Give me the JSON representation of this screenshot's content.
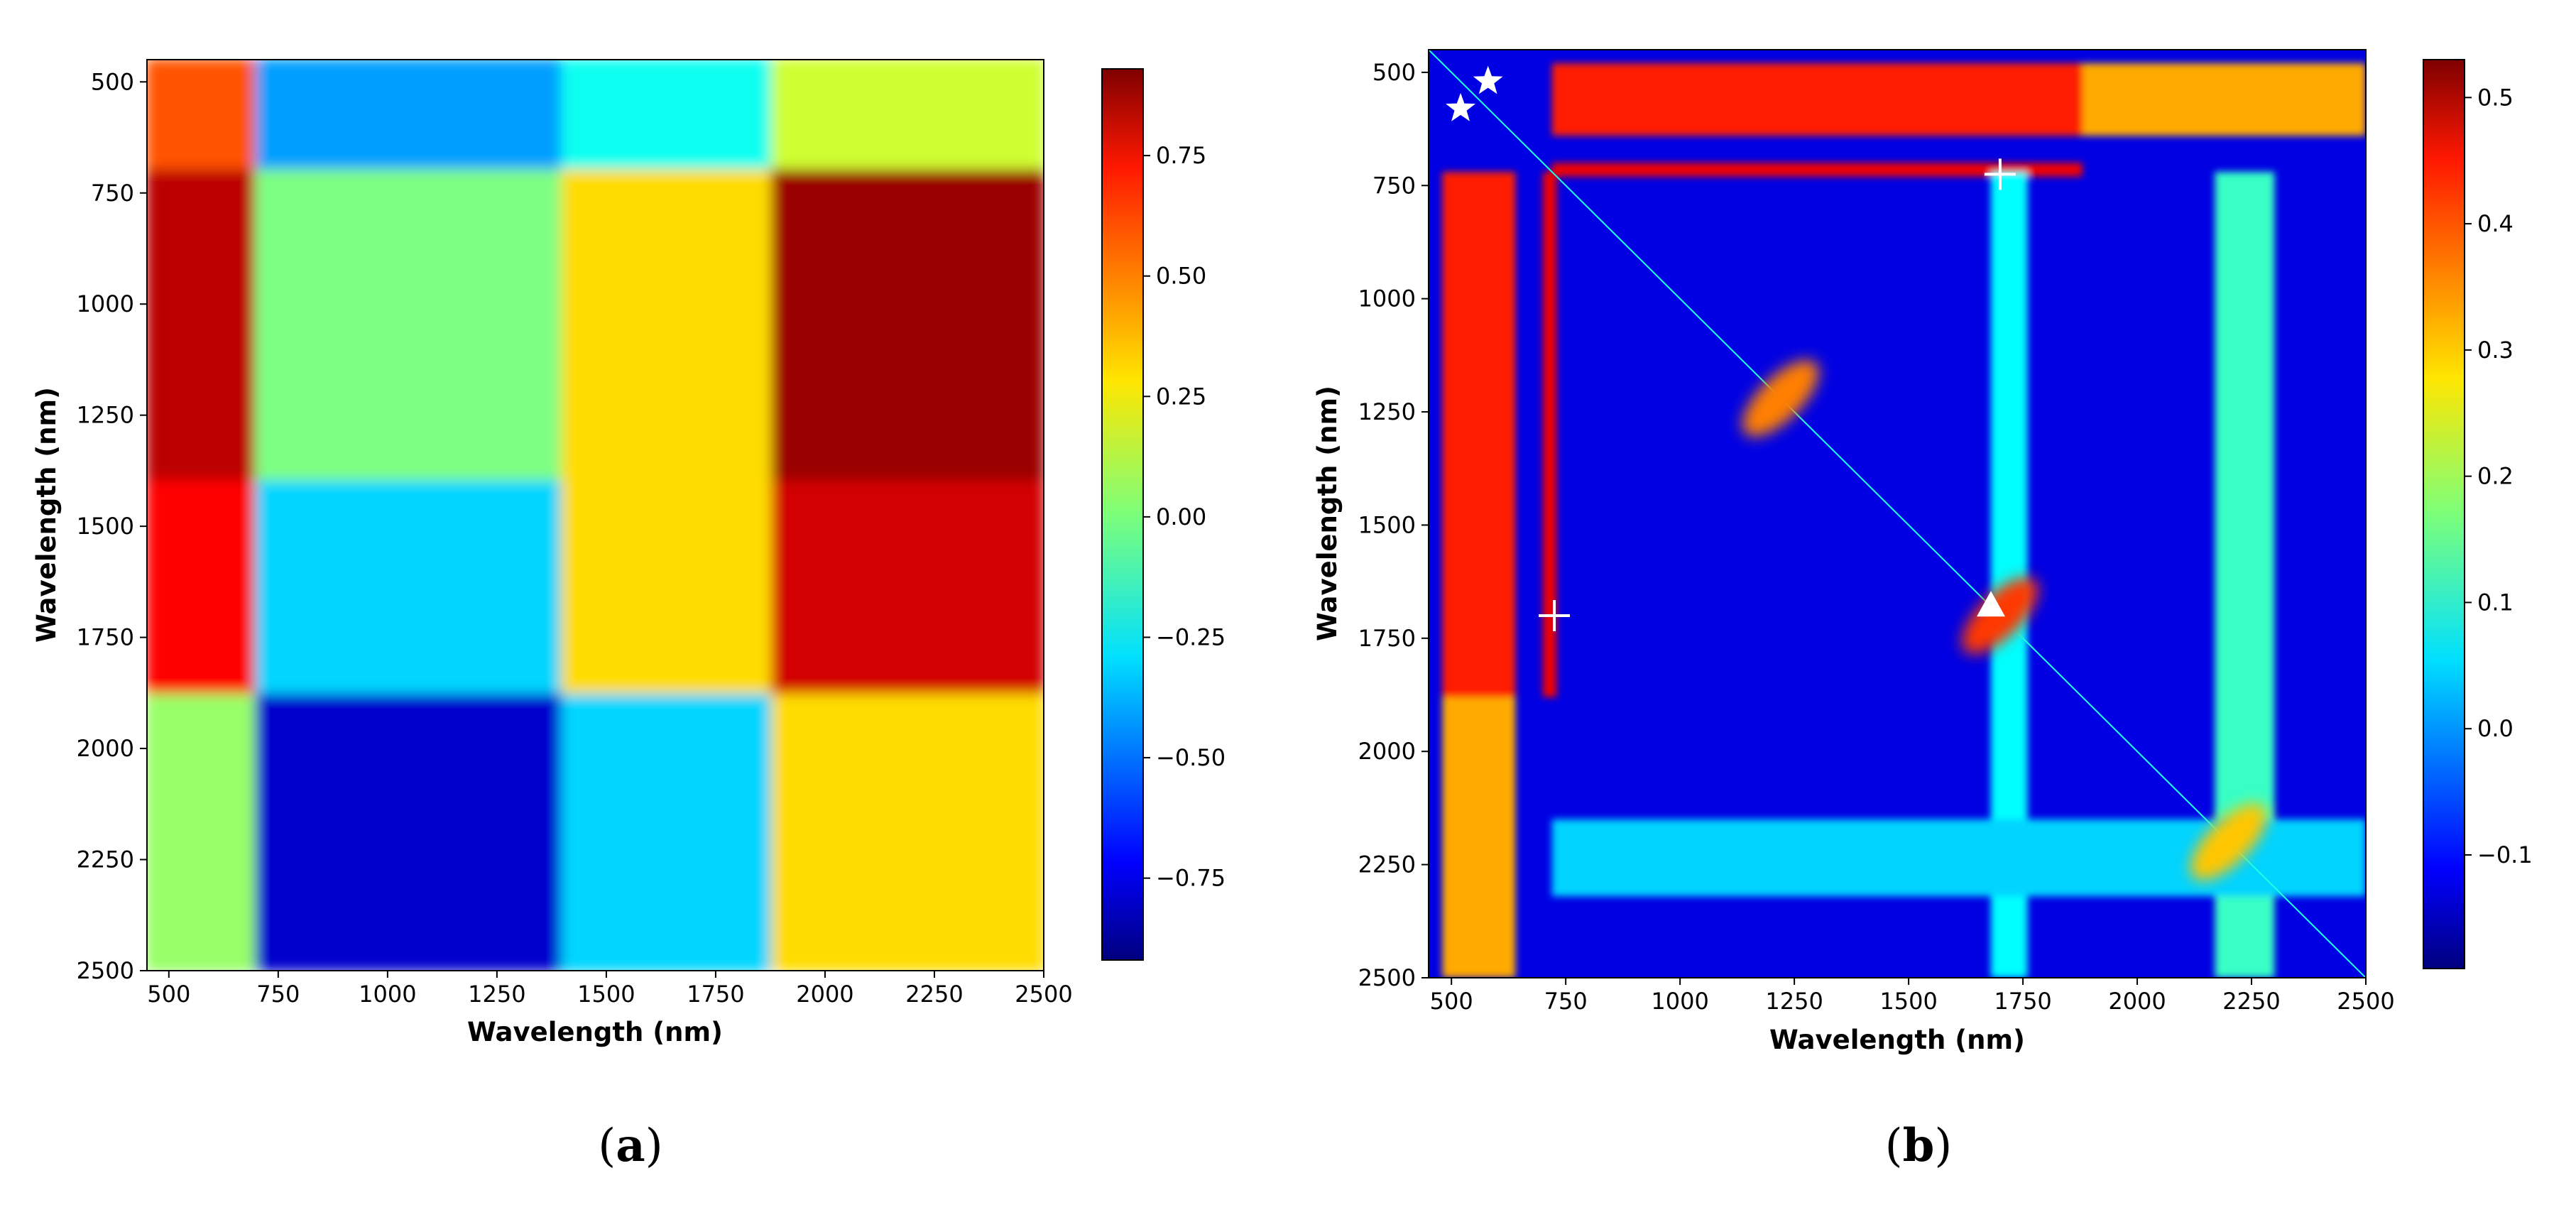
{
  "chart_data": [
    {
      "type": "heatmap",
      "panel_label": "a",
      "xlabel": "Wavelength (nm)",
      "ylabel": "Wavelength (nm)",
      "xlim": [
        450,
        2500
      ],
      "ylim": [
        2500,
        450
      ],
      "x_ticks": [
        500,
        750,
        1000,
        1250,
        1500,
        1750,
        2000,
        2250,
        2500
      ],
      "y_ticks": [
        500,
        750,
        1000,
        1250,
        1500,
        1750,
        2000,
        2250,
        2500
      ],
      "colormap": "jet",
      "colorbar": {
        "range": [
          -0.92,
          0.93
        ],
        "ticks": [
          -0.75,
          -0.5,
          -0.25,
          0.0,
          0.25,
          0.5,
          0.75
        ],
        "tick_labels": [
          "−0.75",
          "−0.50",
          "−0.25",
          "0.00",
          "0.25",
          "0.50",
          "0.75"
        ]
      },
      "region_breaks_nm": [
        450,
        700,
        1400,
        1880,
        2500
      ],
      "region_values": [
        [
          0.55,
          -0.4,
          -0.2,
          0.15
        ],
        [
          0.82,
          0.0,
          0.3,
          0.88
        ],
        [
          0.7,
          -0.3,
          0.3,
          0.78
        ],
        [
          0.05,
          -0.78,
          -0.3,
          0.3
        ]
      ],
      "grid": false
    },
    {
      "type": "heatmap",
      "panel_label": "b",
      "xlabel": "Wavelength (nm)",
      "ylabel": "Wavelength (nm)",
      "xlim": [
        450,
        2500
      ],
      "ylim": [
        2500,
        450
      ],
      "x_ticks": [
        500,
        750,
        1000,
        1250,
        1500,
        1750,
        2000,
        2250,
        2500
      ],
      "y_ticks": [
        500,
        750,
        1000,
        1250,
        1500,
        1750,
        2000,
        2250,
        2500
      ],
      "colormap": "jet",
      "colorbar": {
        "range": [
          -0.19,
          0.53
        ],
        "ticks": [
          -0.1,
          0.0,
          0.1,
          0.2,
          0.3,
          0.4,
          0.5
        ],
        "tick_labels": [
          "−0.1",
          "0.0",
          "0.1",
          "0.2",
          "0.3",
          "0.4",
          "0.5"
        ]
      },
      "background_value": -0.12,
      "band_features": [
        {
          "orientation": "horizontal",
          "from_nm": 480,
          "to_nm": 640,
          "start_nm": 720,
          "end_nm": 1880,
          "value": 0.42
        },
        {
          "orientation": "horizontal",
          "from_nm": 480,
          "to_nm": 640,
          "start_nm": 1880,
          "end_nm": 2500,
          "value": 0.32
        },
        {
          "orientation": "horizontal",
          "from_nm": 700,
          "to_nm": 730,
          "start_nm": 720,
          "end_nm": 1880,
          "value": 0.45
        },
        {
          "orientation": "vertical",
          "from_nm": 480,
          "to_nm": 640,
          "start_nm": 720,
          "end_nm": 1880,
          "value": 0.42
        },
        {
          "orientation": "vertical",
          "from_nm": 480,
          "to_nm": 640,
          "start_nm": 1880,
          "end_nm": 2500,
          "value": 0.32
        },
        {
          "orientation": "vertical",
          "from_nm": 700,
          "to_nm": 730,
          "start_nm": 720,
          "end_nm": 1880,
          "value": 0.45
        },
        {
          "orientation": "vertical",
          "from_nm": 1680,
          "to_nm": 1760,
          "start_nm": 720,
          "end_nm": 2500,
          "value": 0.08
        },
        {
          "orientation": "vertical",
          "from_nm": 2170,
          "to_nm": 2300,
          "start_nm": 720,
          "end_nm": 2500,
          "value": 0.12
        },
        {
          "orientation": "horizontal",
          "from_nm": 2150,
          "to_nm": 2320,
          "start_nm": 720,
          "end_nm": 2500,
          "value": 0.05
        }
      ],
      "hotspots": [
        {
          "x": 1220,
          "y": 1220,
          "value": 0.35
        },
        {
          "x": 1700,
          "y": 1700,
          "value": 0.4
        },
        {
          "x": 2200,
          "y": 2200,
          "value": 0.3
        }
      ],
      "markers": [
        {
          "symbol": "star",
          "x": 580,
          "y": 520
        },
        {
          "symbol": "star",
          "x": 520,
          "y": 580
        },
        {
          "symbol": "plus",
          "x": 1700,
          "y": 725
        },
        {
          "symbol": "plus",
          "x": 725,
          "y": 1700
        },
        {
          "symbol": "triangle",
          "x": 1680,
          "y": 1680
        }
      ],
      "grid": false
    }
  ],
  "captions": {
    "a": "a",
    "b": "b"
  }
}
